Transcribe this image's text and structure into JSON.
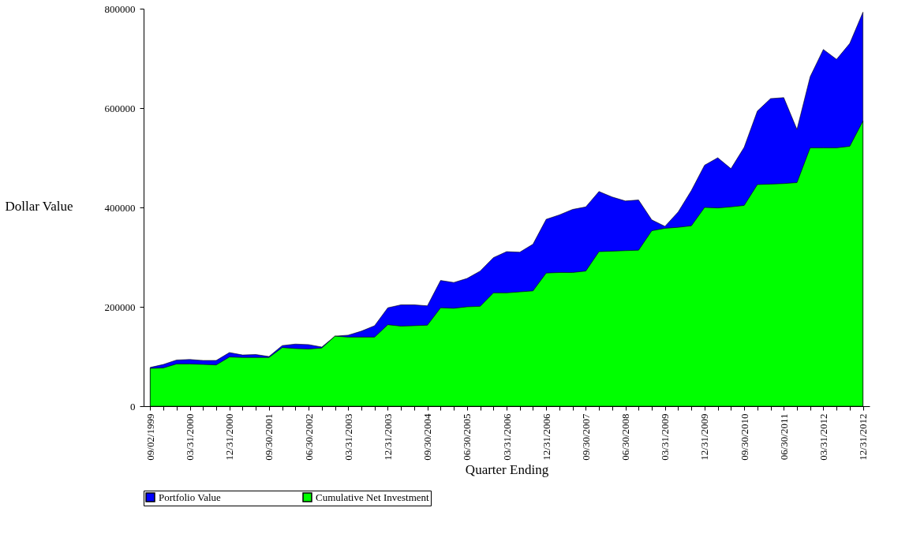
{
  "chart_data": {
    "type": "area",
    "xlabel": "Quarter Ending",
    "ylabel": "Dollar Value",
    "categories": [
      "09/02/1999",
      null,
      null,
      "03/31/2000",
      null,
      null,
      "12/31/2000",
      null,
      null,
      "09/30/2001",
      null,
      null,
      "06/30/2002",
      null,
      null,
      "03/31/2003",
      null,
      null,
      "12/31/2003",
      null,
      null,
      "09/30/2004",
      null,
      null,
      "06/30/2005",
      null,
      null,
      "03/31/2006",
      null,
      null,
      "12/31/2006",
      null,
      null,
      "09/30/2007",
      null,
      null,
      "06/30/2008",
      null,
      null,
      "03/31/2009",
      null,
      null,
      "12/31/2009",
      null,
      null,
      "09/30/2010",
      null,
      null,
      "06/30/2011",
      null,
      null,
      "03/31/2012",
      null,
      null,
      "12/31/2012"
    ],
    "series": [
      {
        "name": "Portfolio Value",
        "color": "#0000ff",
        "values": [
          78000,
          84000,
          93000,
          94000,
          92000,
          92000,
          108000,
          103000,
          104000,
          100000,
          122000,
          125000,
          124000,
          119000,
          141000,
          143000,
          151000,
          162000,
          198000,
          204000,
          204000,
          202000,
          253000,
          249000,
          257000,
          272000,
          299000,
          311000,
          310000,
          326000,
          376000,
          385000,
          396000,
          401000,
          432000,
          421000,
          413000,
          415000,
          375000,
          362000,
          391000,
          434000,
          485000,
          500000,
          478000,
          521000,
          594000,
          619000,
          621000,
          557000,
          663000,
          718000,
          698000,
          730000,
          793000
        ]
      },
      {
        "name": "Cumulative Net Investment",
        "color": "#00ff00",
        "values": [
          76000,
          77000,
          85000,
          85000,
          84000,
          83000,
          99000,
          98000,
          98000,
          98000,
          118000,
          116000,
          115000,
          117000,
          141000,
          139000,
          139000,
          139000,
          164000,
          161000,
          162000,
          163000,
          198000,
          197000,
          200000,
          201000,
          228000,
          228000,
          230000,
          232000,
          268000,
          269000,
          269000,
          272000,
          311000,
          312000,
          313000,
          314000,
          353000,
          358000,
          360000,
          363000,
          400000,
          399000,
          401000,
          404000,
          446000,
          447000,
          448000,
          450000,
          520000,
          520000,
          520000,
          523000,
          574000
        ]
      }
    ],
    "ylim": [
      0,
      800000
    ],
    "yticks": [
      0,
      200000,
      400000,
      600000,
      800000
    ],
    "grid": false,
    "legend": "bottom"
  }
}
